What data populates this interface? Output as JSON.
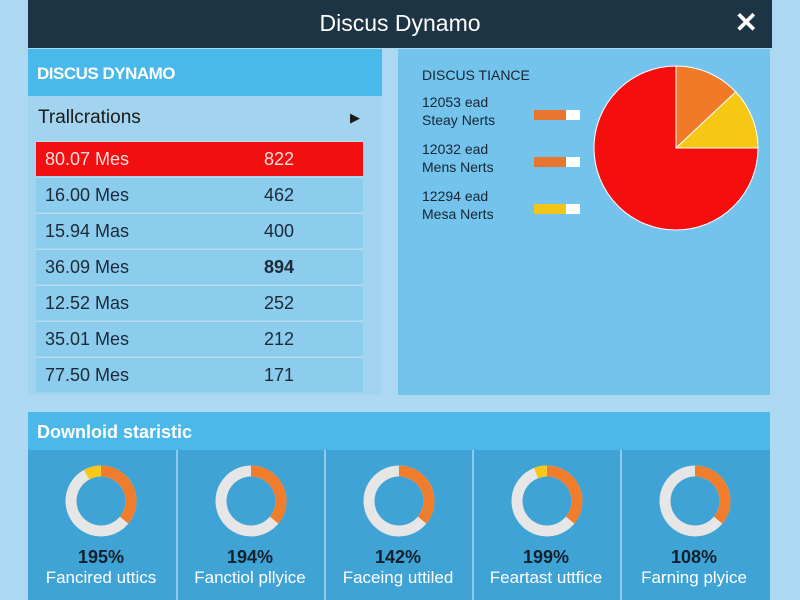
{
  "window": {
    "title": "Discus Dynamo",
    "close_icon": "close-icon"
  },
  "left_panel": {
    "header": "DISCUS DYNAMO",
    "section": "Trallcrations",
    "rows": [
      {
        "label": "80.07 Mes",
        "value": "822",
        "selected": true
      },
      {
        "label": "16.00 Mes",
        "value": "462"
      },
      {
        "label": "15.94 Mas",
        "value": "400"
      },
      {
        "label": "36.09 Mes",
        "value": "894",
        "bold": true
      },
      {
        "label": "12.52 Mas",
        "value": "252"
      },
      {
        "label": "35.01 Mes",
        "value": "212"
      },
      {
        "label": "77.50 Mes",
        "value": "171"
      }
    ]
  },
  "right_panel": {
    "title": "DISCUS TIANCE",
    "legend": [
      {
        "line1": "12053 ead",
        "line2": "Steay Nerts",
        "color": "#e8762e",
        "fill": 0.7
      },
      {
        "line1": "12032 ead",
        "line2": "Mens Nerts",
        "color": "#e8762e",
        "fill": 0.7
      },
      {
        "line1": "12294 ead",
        "line2": "Mesa Nerts",
        "color": "#f2c618",
        "fill": 0.7
      }
    ],
    "pie": [
      {
        "color": "#f07a28",
        "fraction": 0.13
      },
      {
        "color": "#f6c814",
        "fraction": 0.12
      },
      {
        "color": "#f60d0d",
        "fraction": 0.75
      }
    ]
  },
  "downloads": {
    "title": "Downloid staristic",
    "cards": [
      {
        "percent": "195%",
        "label": "Fancired uttics",
        "orange": 0.36,
        "yellow": 0.08
      },
      {
        "percent": "194%",
        "label": "Fanctiol pllyice",
        "orange": 0.36,
        "yellow": 0
      },
      {
        "percent": "142%",
        "label": "Faceing uttiled",
        "orange": 0.36,
        "yellow": 0
      },
      {
        "percent": "199%",
        "label": "Feartast uttfice",
        "orange": 0.36,
        "yellow": 0.06
      },
      {
        "percent": "108%",
        "label": "Farning plyice",
        "orange": 0.36,
        "yellow": 0
      }
    ]
  }
}
